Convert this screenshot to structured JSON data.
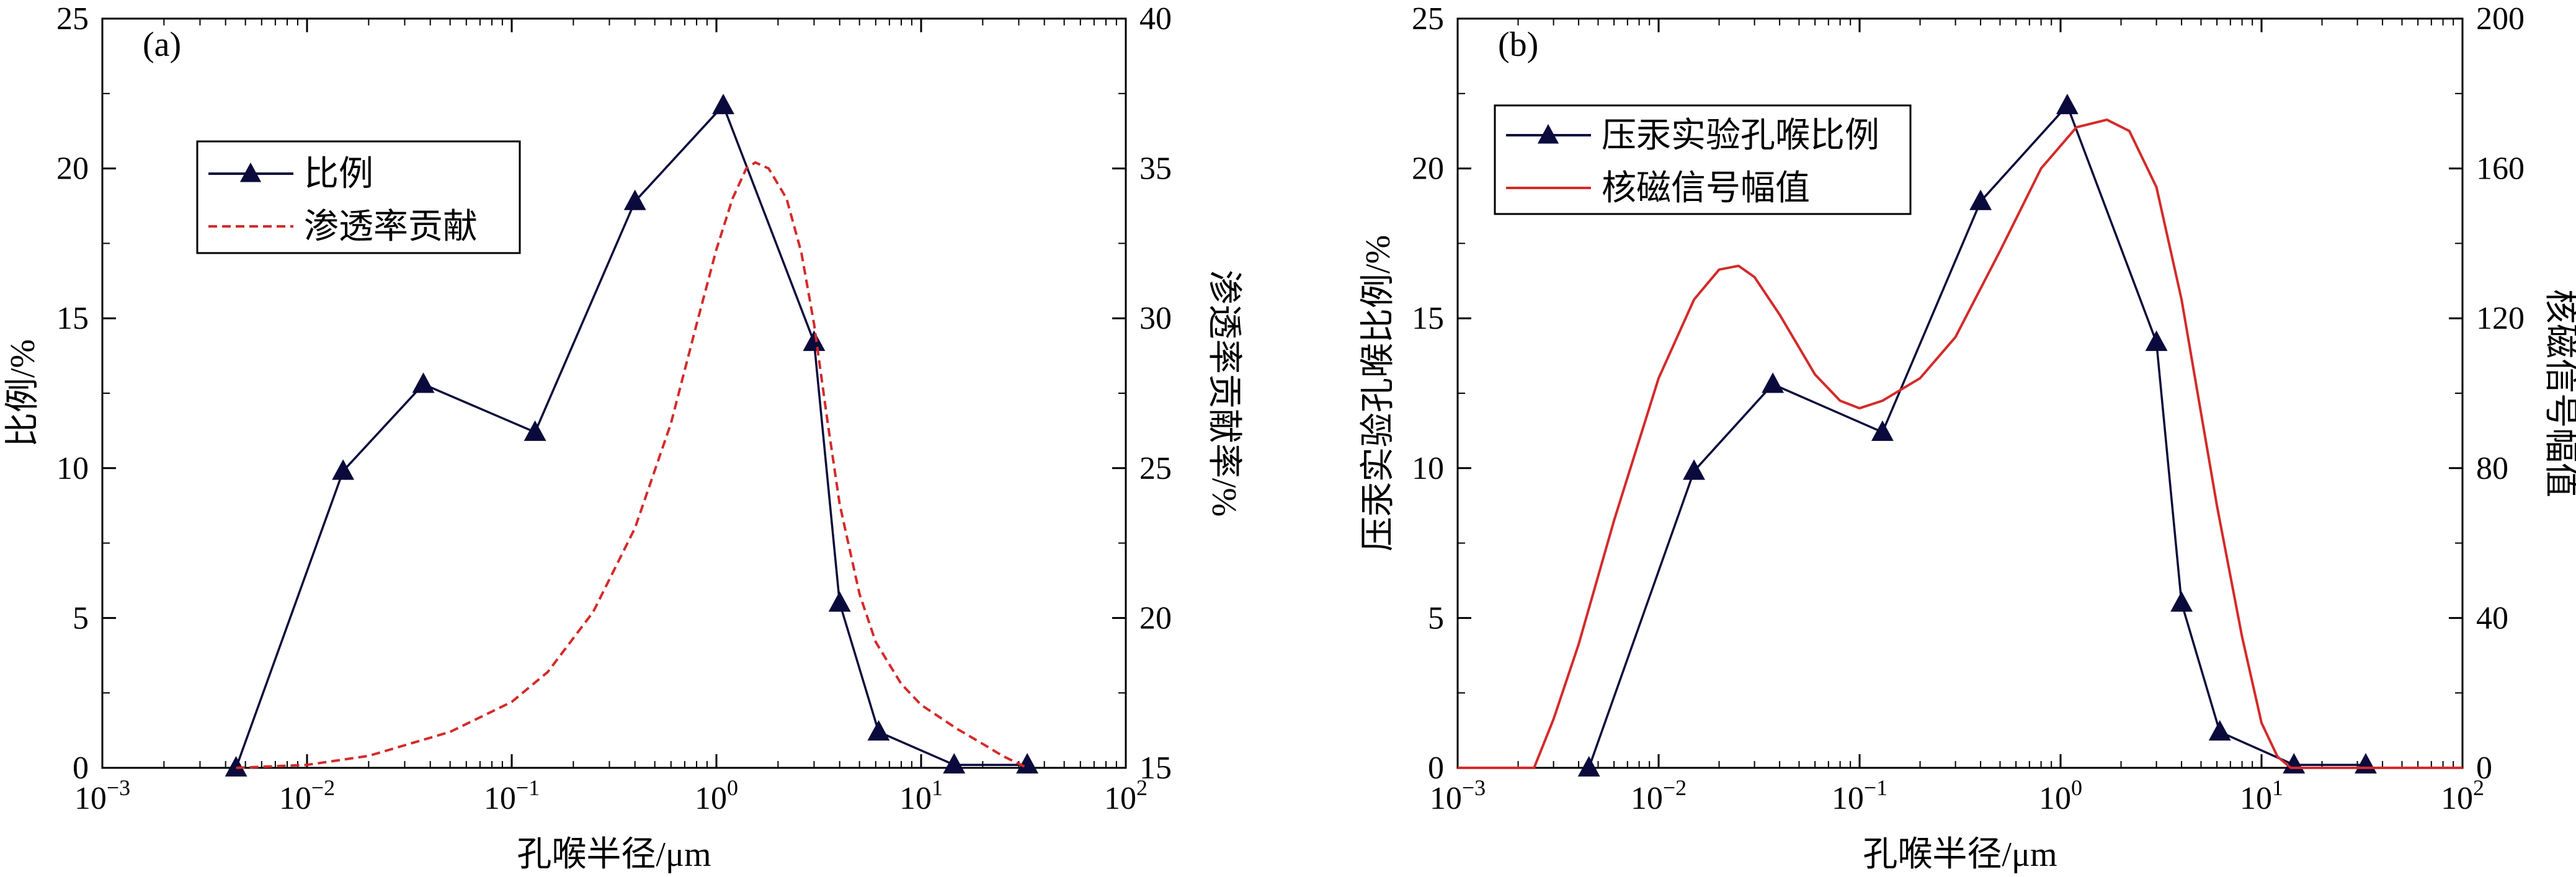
{
  "chart_data": [
    {
      "panel_label": "(a)",
      "type": "line",
      "xlabel": "孔喉半径/μm",
      "xscale": "log",
      "xlim": [
        0.001,
        100
      ],
      "x_tick_labels": [
        {
          "base": "10",
          "exp": "−3"
        },
        {
          "base": "10",
          "exp": "−2"
        },
        {
          "base": "10",
          "exp": "−1"
        },
        {
          "base": "10",
          "exp": "0"
        },
        {
          "base": "10",
          "exp": "1"
        },
        {
          "base": "10",
          "exp": "2"
        }
      ],
      "ylabel_left": "比例/%",
      "ylim_left": [
        0,
        25
      ],
      "yticks_left": [
        "0",
        "5",
        "10",
        "15",
        "20",
        "25"
      ],
      "ylabel_right": "渗透率贡献率/%",
      "ylim_right": [
        15,
        40
      ],
      "yticks_right": [
        "15",
        "20",
        "25",
        "30",
        "35",
        "40"
      ],
      "legend_position": "upper-left",
      "series": [
        {
          "name": "比例",
          "axis": "left",
          "style": "line-marker",
          "marker": "triangle",
          "color": "#0a0a3c",
          "x": [
            0.0045,
            0.015,
            0.037,
            0.13,
            0.4,
            1.08,
            3.0,
            4.0,
            6.2,
            14.5,
            33
          ],
          "y": [
            0,
            9.9,
            12.8,
            11.2,
            18.9,
            22.1,
            14.2,
            5.5,
            1.2,
            0.1,
            0.1
          ]
        },
        {
          "name": "渗透率贡献",
          "axis": "right",
          "style": "dashed",
          "color": "#d42a2a",
          "x": [
            0.0045,
            0.01,
            0.02,
            0.05,
            0.1,
            0.15,
            0.25,
            0.4,
            0.6,
            0.8,
            1.0,
            1.2,
            1.4,
            1.55,
            1.8,
            2.2,
            2.6,
            3.0,
            3.5,
            4.0,
            5.0,
            6.0,
            8.0,
            10.0,
            15.0,
            20.0,
            25.0,
            33.0
          ],
          "y": [
            15,
            15.1,
            15.4,
            16.2,
            17.2,
            18.2,
            20.2,
            23.0,
            26.5,
            29.8,
            32.3,
            34.0,
            35.0,
            35.2,
            35.0,
            34.0,
            32.2,
            29.8,
            26.5,
            23.8,
            20.8,
            19.2,
            17.8,
            17.1,
            16.3,
            15.8,
            15.4,
            15.0
          ]
        }
      ]
    },
    {
      "panel_label": "(b)",
      "type": "line",
      "xlabel": "孔喉半径/μm",
      "xscale": "log",
      "xlim": [
        0.001,
        100
      ],
      "x_tick_labels": [
        {
          "base": "10",
          "exp": "−3"
        },
        {
          "base": "10",
          "exp": "−2"
        },
        {
          "base": "10",
          "exp": "−1"
        },
        {
          "base": "10",
          "exp": "0"
        },
        {
          "base": "10",
          "exp": "1"
        },
        {
          "base": "10",
          "exp": "2"
        }
      ],
      "ylabel_left": "压汞实验孔喉比例/%",
      "ylim_left": [
        0,
        25
      ],
      "yticks_left": [
        "0",
        "5",
        "10",
        "15",
        "20",
        "25"
      ],
      "ylabel_right": "核磁信号幅值",
      "ylim_right": [
        0,
        200
      ],
      "yticks_right": [
        "0",
        "40",
        "80",
        "120",
        "160",
        "200"
      ],
      "legend_position": "upper-left",
      "series": [
        {
          "name": "压汞实验孔喉比例",
          "axis": "left",
          "style": "line-marker",
          "marker": "triangle",
          "color": "#0a0a3c",
          "x": [
            0.0045,
            0.015,
            0.037,
            0.13,
            0.4,
            1.08,
            3.0,
            4.0,
            6.2,
            14.5,
            33
          ],
          "y": [
            0,
            9.9,
            12.8,
            11.2,
            18.9,
            22.1,
            14.2,
            5.5,
            1.2,
            0.1,
            0.1
          ]
        },
        {
          "name": "核磁信号幅值",
          "axis": "right",
          "style": "solid",
          "color": "#d42a2a",
          "x": [
            0.001,
            0.0024,
            0.003,
            0.004,
            0.006,
            0.01,
            0.015,
            0.02,
            0.025,
            0.03,
            0.04,
            0.06,
            0.08,
            0.1,
            0.13,
            0.2,
            0.3,
            0.5,
            0.8,
            1.2,
            1.7,
            2.2,
            3.0,
            4.0,
            6.0,
            8.0,
            10.0,
            12.0,
            14.0,
            20.0,
            40.0,
            100.0
          ],
          "y": [
            0,
            0,
            13,
            33,
            66,
            104,
            125,
            133,
            134,
            131,
            121,
            105,
            98,
            96,
            98,
            104,
            115,
            138,
            160,
            171,
            173,
            170,
            155,
            125,
            70,
            35,
            12,
            3,
            0,
            0,
            0,
            0
          ]
        }
      ]
    }
  ]
}
